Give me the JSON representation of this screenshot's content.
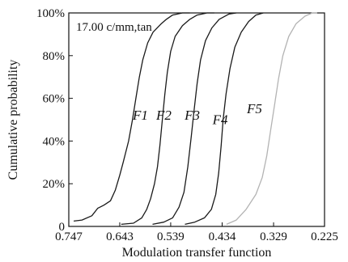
{
  "chart_data": {
    "type": "line",
    "annotation": "17.00 c/mm,tan",
    "xlabel": "Modulation transfer function",
    "ylabel": "Cumulative probability",
    "x_reversed": true,
    "xlim": [
      0.225,
      0.747
    ],
    "ylim": [
      0,
      100
    ],
    "x_ticks": [
      0.747,
      0.643,
      0.539,
      0.434,
      0.329,
      0.225
    ],
    "x_tick_labels": [
      "0.747",
      "0.643",
      "0.539",
      "0.434",
      "0.329",
      "0.225"
    ],
    "y_ticks": [
      0,
      20,
      40,
      60,
      80,
      100
    ],
    "y_tick_labels": [
      "0",
      "20%",
      "40%",
      "60%",
      "80%",
      "100%"
    ],
    "grid": false,
    "series": [
      {
        "name": "F1",
        "color": "#1a1a1a",
        "label_at": [
          0.601,
          50
        ],
        "points": [
          [
            0.737,
            2.5
          ],
          [
            0.72,
            3
          ],
          [
            0.7,
            5
          ],
          [
            0.688,
            8.5
          ],
          [
            0.675,
            10
          ],
          [
            0.662,
            12
          ],
          [
            0.652,
            17
          ],
          [
            0.643,
            24
          ],
          [
            0.636,
            30
          ],
          [
            0.625,
            40
          ],
          [
            0.617,
            50
          ],
          [
            0.61,
            60
          ],
          [
            0.603,
            70
          ],
          [
            0.596,
            78
          ],
          [
            0.586,
            86
          ],
          [
            0.575,
            91
          ],
          [
            0.558,
            95
          ],
          [
            0.548,
            97
          ],
          [
            0.535,
            99
          ],
          [
            0.515,
            100
          ],
          [
            0.5,
            100
          ]
        ]
      },
      {
        "name": "F2",
        "color": "#1a1a1a",
        "label_at": [
          0.553,
          50
        ],
        "points": [
          [
            0.64,
            1
          ],
          [
            0.615,
            1.5
          ],
          [
            0.598,
            4
          ],
          [
            0.588,
            8
          ],
          [
            0.58,
            13
          ],
          [
            0.572,
            20
          ],
          [
            0.566,
            28
          ],
          [
            0.561,
            38
          ],
          [
            0.556,
            50
          ],
          [
            0.551,
            62
          ],
          [
            0.546,
            72
          ],
          [
            0.539,
            82
          ],
          [
            0.53,
            89
          ],
          [
            0.515,
            94
          ],
          [
            0.5,
            97
          ],
          [
            0.485,
            99
          ],
          [
            0.465,
            100
          ],
          [
            0.45,
            100
          ]
        ]
      },
      {
        "name": "F3",
        "color": "#1a1a1a",
        "label_at": [
          0.495,
          50
        ],
        "points": [
          [
            0.576,
            1
          ],
          [
            0.553,
            2
          ],
          [
            0.535,
            4
          ],
          [
            0.522,
            9
          ],
          [
            0.512,
            16
          ],
          [
            0.504,
            28
          ],
          [
            0.497,
            42
          ],
          [
            0.491,
            55
          ],
          [
            0.485,
            67
          ],
          [
            0.478,
            78
          ],
          [
            0.468,
            87
          ],
          [
            0.455,
            93
          ],
          [
            0.44,
            97
          ],
          [
            0.42,
            99.5
          ],
          [
            0.405,
            100
          ]
        ]
      },
      {
        "name": "F4",
        "color": "#1a1a1a",
        "label_at": [
          0.438,
          48
        ],
        "points": [
          [
            0.51,
            1
          ],
          [
            0.49,
            2
          ],
          [
            0.47,
            4
          ],
          [
            0.456,
            8
          ],
          [
            0.447,
            15
          ],
          [
            0.441,
            25
          ],
          [
            0.436,
            38
          ],
          [
            0.432,
            50
          ],
          [
            0.426,
            62
          ],
          [
            0.418,
            74
          ],
          [
            0.408,
            84
          ],
          [
            0.395,
            91
          ],
          [
            0.38,
            96
          ],
          [
            0.365,
            99
          ],
          [
            0.35,
            100
          ]
        ]
      },
      {
        "name": "F5",
        "color": "#b3b3b3",
        "label_at": [
          0.368,
          53
        ],
        "points": [
          [
            0.425,
            1
          ],
          [
            0.405,
            3
          ],
          [
            0.385,
            8
          ],
          [
            0.365,
            15
          ],
          [
            0.352,
            23
          ],
          [
            0.343,
            33
          ],
          [
            0.335,
            45
          ],
          [
            0.327,
            57
          ],
          [
            0.319,
            69
          ],
          [
            0.31,
            80
          ],
          [
            0.298,
            89
          ],
          [
            0.283,
            95
          ],
          [
            0.265,
            98.5
          ],
          [
            0.25,
            100
          ],
          [
            0.24,
            100
          ]
        ]
      }
    ]
  }
}
